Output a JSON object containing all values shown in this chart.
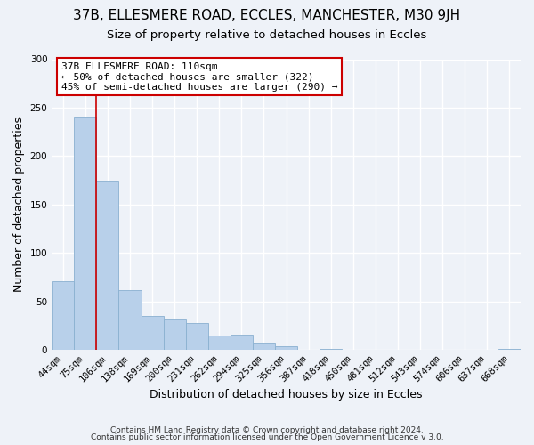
{
  "title": "37B, ELLESMERE ROAD, ECCLES, MANCHESTER, M30 9JH",
  "subtitle": "Size of property relative to detached houses in Eccles",
  "xlabel": "Distribution of detached houses by size in Eccles",
  "ylabel": "Number of detached properties",
  "footer_line1": "Contains HM Land Registry data © Crown copyright and database right 2024.",
  "footer_line2": "Contains public sector information licensed under the Open Government Licence v 3.0.",
  "bar_labels": [
    "44sqm",
    "75sqm",
    "106sqm",
    "138sqm",
    "169sqm",
    "200sqm",
    "231sqm",
    "262sqm",
    "294sqm",
    "325sqm",
    "356sqm",
    "387sqm",
    "418sqm",
    "450sqm",
    "481sqm",
    "512sqm",
    "543sqm",
    "574sqm",
    "606sqm",
    "637sqm",
    "668sqm"
  ],
  "bar_values": [
    71,
    240,
    175,
    62,
    35,
    32,
    28,
    15,
    16,
    7,
    4,
    0,
    1,
    0,
    0,
    0,
    0,
    0,
    0,
    0,
    1
  ],
  "bar_color": "#b8d0ea",
  "bar_edge_color": "#8ab0d0",
  "vline_color": "#cc0000",
  "annotation_title": "37B ELLESMERE ROAD: 110sqm",
  "annotation_line1": "← 50% of detached houses are smaller (322)",
  "annotation_line2": "45% of semi-detached houses are larger (290) →",
  "annotation_box_color": "#cc0000",
  "ylim": [
    0,
    300
  ],
  "yticks": [
    0,
    50,
    100,
    150,
    200,
    250,
    300
  ],
  "background_color": "#eef2f8",
  "plot_bg_color": "#eef2f8",
  "grid_color": "#ffffff",
  "title_fontsize": 11,
  "subtitle_fontsize": 9.5,
  "axis_label_fontsize": 9,
  "tick_fontsize": 7.5,
  "footer_fontsize": 6.5
}
